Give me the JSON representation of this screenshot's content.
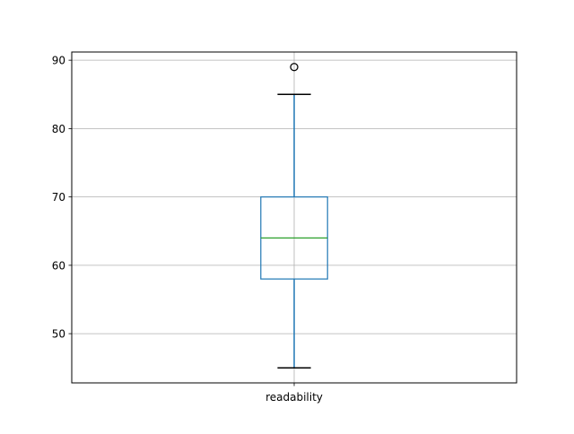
{
  "chart_data": {
    "type": "box",
    "title": "",
    "xlabel": "",
    "ylabel": "",
    "categories": [
      "readability"
    ],
    "boxes": [
      {
        "name": "readability",
        "whisker_low": 45,
        "q1": 58,
        "median": 64,
        "q3": 70,
        "whisker_high": 85,
        "outliers": [
          89
        ]
      }
    ],
    "ylim": [
      42.8,
      91.2
    ],
    "yticks": [
      50,
      60,
      70,
      80,
      90
    ],
    "grid": true,
    "colors": {
      "box": "#1f77b4",
      "median": "#2ca02c",
      "caps": "#000000",
      "outliers": "#000000",
      "grid": "#b0b0b0"
    }
  }
}
